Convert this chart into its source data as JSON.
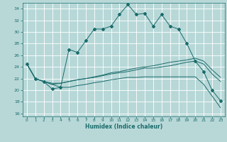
{
  "xlabel": "Humidex (Indice chaleur)",
  "xlim": [
    -0.5,
    23.5
  ],
  "ylim": [
    15.5,
    35.0
  ],
  "xticks": [
    0,
    1,
    2,
    3,
    4,
    5,
    6,
    7,
    8,
    9,
    10,
    11,
    12,
    13,
    14,
    15,
    16,
    17,
    18,
    19,
    20,
    21,
    22,
    23
  ],
  "yticks": [
    16,
    18,
    20,
    22,
    24,
    26,
    28,
    30,
    32,
    34
  ],
  "bg_color": "#b8d8d8",
  "line_color": "#1a6b6b",
  "grid_color": "#ffffff",
  "line1_x": [
    0,
    1,
    2,
    3,
    4,
    5,
    6,
    7,
    8,
    9,
    10,
    11,
    12,
    13,
    14,
    15,
    16,
    17,
    18,
    19,
    20,
    21,
    22,
    23
  ],
  "line1_y": [
    24.5,
    22.0,
    21.5,
    20.2,
    20.5,
    27.0,
    26.5,
    28.5,
    30.5,
    30.5,
    31.0,
    33.0,
    34.7,
    33.0,
    33.2,
    31.0,
    33.0,
    31.0,
    30.5,
    28.0,
    25.0,
    23.2,
    20.0,
    18.2
  ],
  "line2_x": [
    0,
    1,
    2,
    3,
    4,
    5,
    6,
    7,
    8,
    9,
    10,
    11,
    12,
    13,
    14,
    15,
    16,
    17,
    18,
    19,
    20,
    21,
    22,
    23
  ],
  "line2_y": [
    24.5,
    22.0,
    21.5,
    21.2,
    21.2,
    21.5,
    21.8,
    22.0,
    22.2,
    22.5,
    22.8,
    23.0,
    23.2,
    23.5,
    23.8,
    23.8,
    24.0,
    24.2,
    24.5,
    24.8,
    25.0,
    24.5,
    22.8,
    21.5
  ],
  "line3_x": [
    0,
    1,
    2,
    3,
    4,
    5,
    6,
    7,
    8,
    9,
    10,
    11,
    12,
    13,
    14,
    15,
    16,
    17,
    18,
    19,
    20,
    21,
    22,
    23
  ],
  "line3_y": [
    24.5,
    22.0,
    21.5,
    21.0,
    21.2,
    21.5,
    21.8,
    22.0,
    22.3,
    22.6,
    23.0,
    23.2,
    23.5,
    23.8,
    24.0,
    24.2,
    24.5,
    24.8,
    25.0,
    25.2,
    25.5,
    25.0,
    23.5,
    22.2
  ],
  "line4_x": [
    0,
    1,
    2,
    3,
    4,
    5,
    6,
    7,
    8,
    9,
    10,
    11,
    12,
    13,
    14,
    15,
    16,
    17,
    18,
    19,
    20,
    21,
    22,
    23
  ],
  "line4_y": [
    24.5,
    22.0,
    21.5,
    21.0,
    20.5,
    20.5,
    20.8,
    21.0,
    21.3,
    21.5,
    21.8,
    22.0,
    22.2,
    22.2,
    22.3,
    22.3,
    22.3,
    22.3,
    22.3,
    22.3,
    22.3,
    21.0,
    19.0,
    17.0
  ]
}
